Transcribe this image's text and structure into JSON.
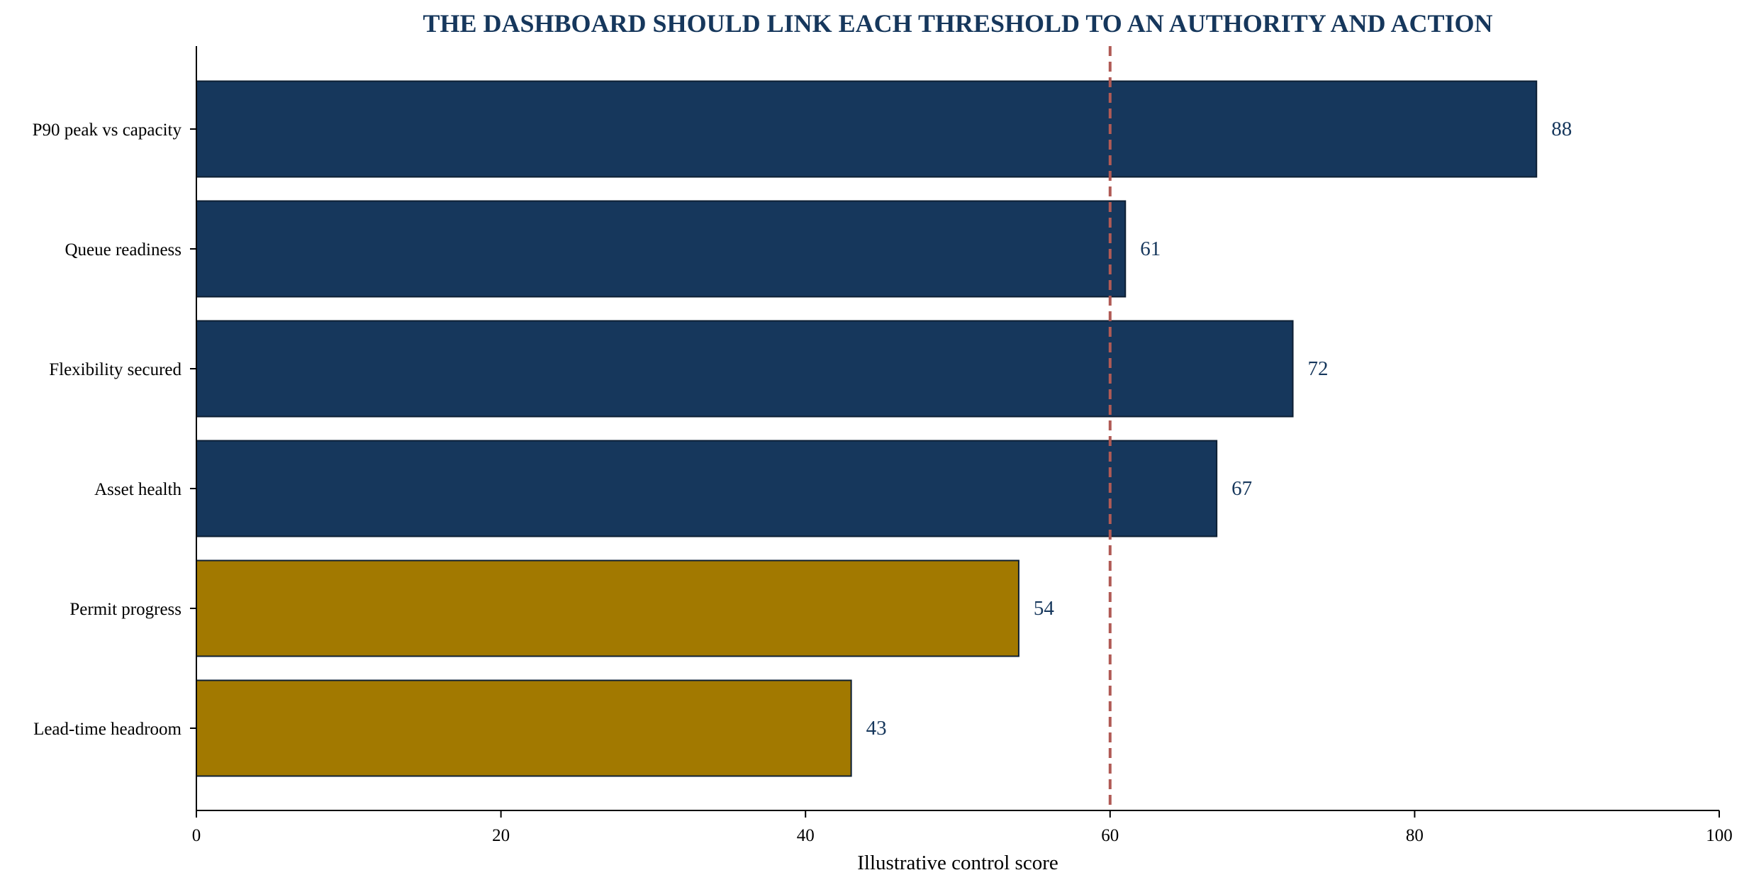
{
  "colors": {
    "primary": "#16375c",
    "secondary": "#a27900",
    "threshold": "#b05a55",
    "bar_edge": "#0d1f33",
    "axis": "#000000"
  },
  "chart_data": {
    "type": "bar",
    "orientation": "horizontal",
    "title": "THE DASHBOARD SHOULD LINK EACH THRESHOLD TO AN AUTHORITY AND ACTION",
    "xlabel": "Illustrative control score",
    "ylabel": "",
    "xlim": [
      0,
      100
    ],
    "x_ticks": [
      0,
      20,
      40,
      60,
      80,
      100
    ],
    "categories": [
      "P90 peak vs capacity",
      "Queue readiness",
      "Flexibility secured",
      "Asset health",
      "Permit progress",
      "Lead-time headroom"
    ],
    "values": [
      88,
      61,
      72,
      67,
      54,
      43
    ],
    "bar_colors": [
      "primary",
      "primary",
      "primary",
      "primary",
      "secondary",
      "secondary"
    ],
    "data_labels": [
      "88",
      "61",
      "72",
      "67",
      "54",
      "43"
    ],
    "threshold": 60,
    "grid": false,
    "legend": "none"
  }
}
